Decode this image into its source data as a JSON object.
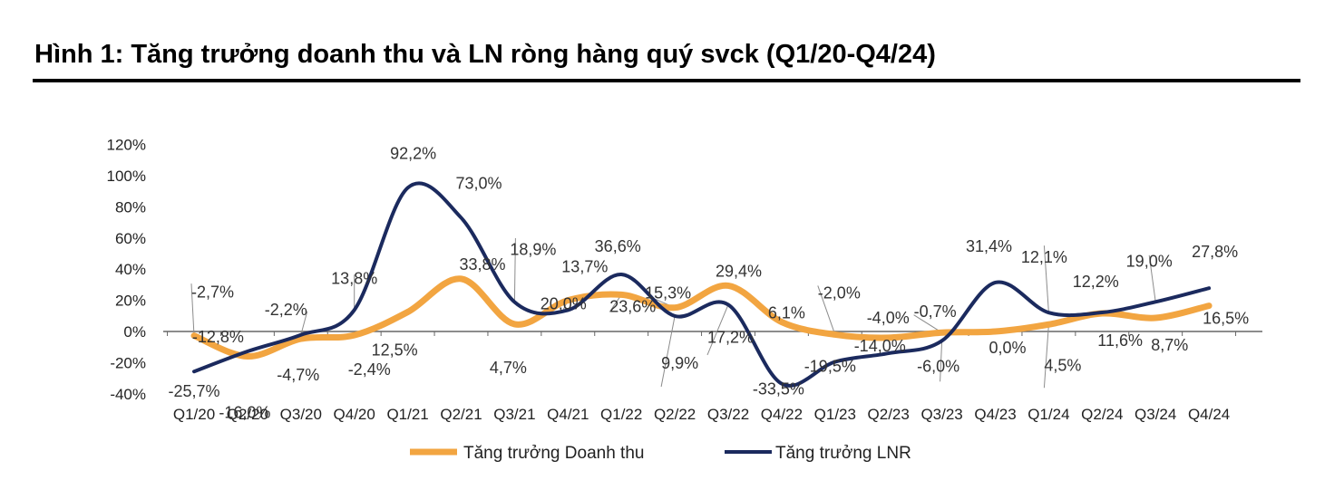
{
  "header": {
    "title": "Hình 1: Tăng trưởng doanh thu và LN ròng hàng quý svck (Q1/20-Q4/24)"
  },
  "colors": {
    "revenue": "#F2A541",
    "profit": "#1B2A5E",
    "leader": "#8c8c8c"
  },
  "chart_data": {
    "type": "line",
    "title": "",
    "xlabel": "",
    "ylabel": "",
    "categories": [
      "Q1/20",
      "Q2/20",
      "Q3/20",
      "Q4/20",
      "Q1/21",
      "Q2/21",
      "Q3/21",
      "Q4/21",
      "Q1/22",
      "Q2/22",
      "Q3/22",
      "Q4/22",
      "Q1/23",
      "Q2/23",
      "Q3/23",
      "Q4/23",
      "Q1/24",
      "Q2/24",
      "Q3/24",
      "Q4/24"
    ],
    "ylim": [
      -40,
      120
    ],
    "yticks": [
      -40,
      -20,
      0,
      20,
      40,
      60,
      80,
      100,
      120
    ],
    "ytick_labels": [
      "-40%",
      "-20%",
      "0%",
      "20%",
      "40%",
      "60%",
      "80%",
      "100%",
      "120%"
    ],
    "grid": false,
    "legend_position": "bottom",
    "series": [
      {
        "name": "Tăng trưởng Doanh thu",
        "color_key": "revenue",
        "values": [
          -2.7,
          -16.0,
          -4.7,
          -2.4,
          12.5,
          33.8,
          4.7,
          20.0,
          23.6,
          15.3,
          29.4,
          6.1,
          -2.0,
          -4.0,
          -0.7,
          0.0,
          4.5,
          11.6,
          8.7,
          16.5
        ],
        "labels": [
          "-2,7%",
          "-16,0%",
          "-4,7%",
          "-2,4%",
          "12,5%",
          "33,8%",
          "4,7%",
          "20,0%",
          "23,6%",
          "15,3%",
          "29,4%",
          "6,1%",
          "-2,0%",
          "-4,0%",
          "-0,7%",
          "0,0%",
          "4,5%",
          "11,6%",
          "8,7%",
          "16,5%"
        ]
      },
      {
        "name": "Tăng trưởng LNR",
        "color_key": "profit",
        "values": [
          -25.7,
          -12.8,
          -2.2,
          13.8,
          92.2,
          73.0,
          18.9,
          13.7,
          36.6,
          9.9,
          17.2,
          -33.5,
          -19.5,
          -14.0,
          -6.0,
          31.4,
          12.1,
          12.2,
          19.0,
          27.8
        ],
        "labels": [
          "-25,7%",
          "-12,8%",
          "-2,2%",
          "13,8%",
          "92,2%",
          "73,0%",
          "18,9%",
          "13,7%",
          "36,6%",
          "9,9%",
          "17,2%",
          "-33,5%",
          "-19,5%",
          "-14,0%",
          "-6,0%",
          "31,4%",
          "12,1%",
          "12,2%",
          "19,0%",
          "27,8%"
        ]
      }
    ]
  }
}
